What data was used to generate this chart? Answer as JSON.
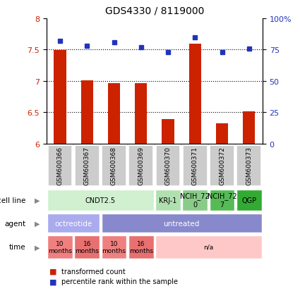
{
  "title": "GDS4330 / 8119000",
  "samples": [
    "GSM600366",
    "GSM600367",
    "GSM600368",
    "GSM600369",
    "GSM600370",
    "GSM600371",
    "GSM600372",
    "GSM600373"
  ],
  "bar_values": [
    7.49,
    7.01,
    6.97,
    6.96,
    6.39,
    7.59,
    6.32,
    6.52
  ],
  "bar_base": 6.0,
  "percentile_values": [
    82,
    78,
    81,
    77,
    73,
    85,
    73,
    76
  ],
  "bar_color": "#cc2200",
  "dot_color": "#2233bb",
  "ylim_left": [
    6.0,
    8.0
  ],
  "ylim_right": [
    0,
    100
  ],
  "yticks_left": [
    6.0,
    6.5,
    7.0,
    7.5,
    8.0
  ],
  "ytick_labels_left": [
    "6",
    "6.5",
    "7",
    "7.5",
    "8"
  ],
  "yticks_right": [
    0,
    25,
    50,
    75,
    100
  ],
  "ytick_labels_right": [
    "0",
    "25",
    "50",
    "75",
    "100%"
  ],
  "hlines": [
    6.5,
    7.0,
    7.5
  ],
  "cell_line_groups": [
    {
      "label": "CNDT2.5",
      "span": [
        0,
        4
      ],
      "color": "#d0f0d0"
    },
    {
      "label": "KRJ-1",
      "span": [
        4,
        5
      ],
      "color": "#b0e0b0"
    },
    {
      "label": "NCIH_72\n0",
      "span": [
        5,
        6
      ],
      "color": "#88cc88"
    },
    {
      "label": "NCIH_72\n7",
      "span": [
        6,
        7
      ],
      "color": "#55bb55"
    },
    {
      "label": "QGP",
      "span": [
        7,
        8
      ],
      "color": "#33aa33"
    }
  ],
  "agent_groups": [
    {
      "label": "octreotide",
      "span": [
        0,
        2
      ],
      "color": "#aaaaee"
    },
    {
      "label": "untreated",
      "span": [
        2,
        8
      ],
      "color": "#8888cc"
    }
  ],
  "time_groups": [
    {
      "label": "10\nmonths",
      "span": [
        0,
        1
      ],
      "color": "#f08080"
    },
    {
      "label": "16\nmonths",
      "span": [
        1,
        2
      ],
      "color": "#e87070"
    },
    {
      "label": "10\nmonths",
      "span": [
        2,
        3
      ],
      "color": "#f08080"
    },
    {
      "label": "16\nmonths",
      "span": [
        3,
        4
      ],
      "color": "#e87070"
    },
    {
      "label": "n/a",
      "span": [
        4,
        8
      ],
      "color": "#ffc8c8"
    }
  ],
  "legend_bar_label": "transformed count",
  "legend_dot_label": "percentile rank within the sample",
  "row_labels": [
    "cell line",
    "agent",
    "time"
  ],
  "sample_box_color": "#cccccc",
  "chart_bg": "#ffffff"
}
